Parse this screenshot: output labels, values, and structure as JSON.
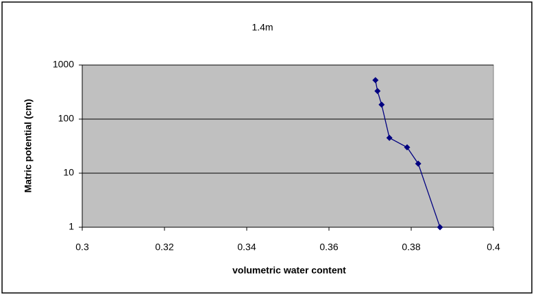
{
  "chart_data": {
    "type": "scatter",
    "title": "1.4m",
    "x_label": "volumetric water content",
    "y_label": "Matric potential (cm)",
    "x": [
      0.3713,
      0.3718,
      0.3728,
      0.3747,
      0.379,
      0.3817,
      0.387
    ],
    "values": [
      525,
      330,
      185,
      45,
      30,
      15,
      1
    ],
    "color": "#000080",
    "xlim": [
      0.3,
      0.4
    ],
    "xticks": [
      0.3,
      0.32,
      0.34,
      0.36,
      0.38,
      0.4
    ],
    "ylim": [
      1,
      1000
    ],
    "yticks": [
      1,
      10,
      100,
      1000
    ],
    "yscale": "log",
    "grid": true
  }
}
